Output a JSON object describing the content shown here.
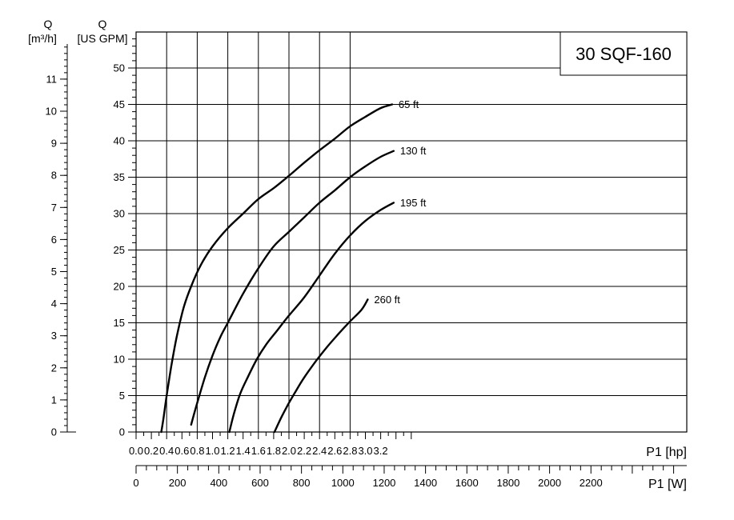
{
  "chart_data": {
    "type": "line",
    "title": "30 SQF-160",
    "x_axis_hp": {
      "label": "P1 [hp]",
      "range": [
        0.0,
        3.6
      ],
      "tick_labels": [
        "0.0",
        "0.2",
        "0.4",
        "0.6",
        "0.8",
        "1.0",
        "1.2",
        "1.4",
        "1.6",
        "1.8",
        "2.0",
        "2.2",
        "2.4",
        "2.6",
        "2.8",
        "3.0",
        "3.2"
      ]
    },
    "x_axis_w": {
      "label": "P1 [W]",
      "tick_labels": [
        "0",
        "200",
        "400",
        "600",
        "800",
        "1000",
        "1200",
        "1400",
        "1600",
        "1800",
        "2000",
        "2200"
      ]
    },
    "y_axis_gpm": {
      "label_top": "Q",
      "label_unit": "[US GPM]",
      "range": [
        0,
        55
      ],
      "tick_labels": [
        "0",
        "5",
        "10",
        "15",
        "20",
        "25",
        "30",
        "35",
        "40",
        "45",
        "50"
      ]
    },
    "y_axis_m3h": {
      "label_top": "Q",
      "label_unit": "[m³/h]",
      "tick_labels": [
        "0",
        "1",
        "2",
        "3",
        "4",
        "5",
        "6",
        "7",
        "8",
        "9",
        "10",
        "11"
      ]
    },
    "grid": true,
    "series": [
      {
        "name": "65 ft",
        "points": [
          [
            0.33,
            0
          ],
          [
            0.36,
            2
          ],
          [
            0.4,
            5
          ],
          [
            0.46,
            9
          ],
          [
            0.53,
            13
          ],
          [
            0.62,
            17
          ],
          [
            0.72,
            20
          ],
          [
            0.85,
            23
          ],
          [
            1.0,
            25.5
          ],
          [
            1.2,
            28
          ],
          [
            1.4,
            30
          ],
          [
            1.6,
            32
          ],
          [
            1.8,
            33.5
          ],
          [
            2.0,
            35.2
          ],
          [
            2.2,
            37
          ],
          [
            2.4,
            38.7
          ],
          [
            2.6,
            40.3
          ],
          [
            2.8,
            42
          ],
          [
            3.0,
            43.3
          ],
          [
            3.2,
            44.5
          ],
          [
            3.35,
            45
          ]
        ]
      },
      {
        "name": "130 ft",
        "points": [
          [
            0.72,
            1
          ],
          [
            0.8,
            4
          ],
          [
            0.9,
            7.5
          ],
          [
            1.0,
            10.5
          ],
          [
            1.1,
            13
          ],
          [
            1.2,
            15
          ],
          [
            1.4,
            19
          ],
          [
            1.6,
            22.5
          ],
          [
            1.8,
            25.5
          ],
          [
            2.0,
            27.5
          ],
          [
            2.2,
            29.5
          ],
          [
            2.4,
            31.5
          ],
          [
            2.6,
            33.2
          ],
          [
            2.8,
            35
          ],
          [
            3.0,
            36.5
          ],
          [
            3.2,
            37.8
          ],
          [
            3.37,
            38.6
          ]
        ]
      },
      {
        "name": "195 ft",
        "points": [
          [
            1.22,
            0
          ],
          [
            1.28,
            2.5
          ],
          [
            1.36,
            5.2
          ],
          [
            1.46,
            7.5
          ],
          [
            1.58,
            10
          ],
          [
            1.7,
            12
          ],
          [
            1.85,
            14
          ],
          [
            2.0,
            16
          ],
          [
            2.2,
            18.5
          ],
          [
            2.4,
            21.5
          ],
          [
            2.6,
            24.5
          ],
          [
            2.8,
            27
          ],
          [
            3.0,
            29
          ],
          [
            3.2,
            30.5
          ],
          [
            3.37,
            31.5
          ]
        ]
      },
      {
        "name": "260 ft",
        "points": [
          [
            1.81,
            0
          ],
          [
            1.9,
            2
          ],
          [
            2.0,
            4
          ],
          [
            2.1,
            5.8
          ],
          [
            2.2,
            7.5
          ],
          [
            2.35,
            9.7
          ],
          [
            2.5,
            11.7
          ],
          [
            2.65,
            13.5
          ],
          [
            2.8,
            15.2
          ],
          [
            2.95,
            16.8
          ],
          [
            3.03,
            18.2
          ]
        ]
      }
    ]
  }
}
